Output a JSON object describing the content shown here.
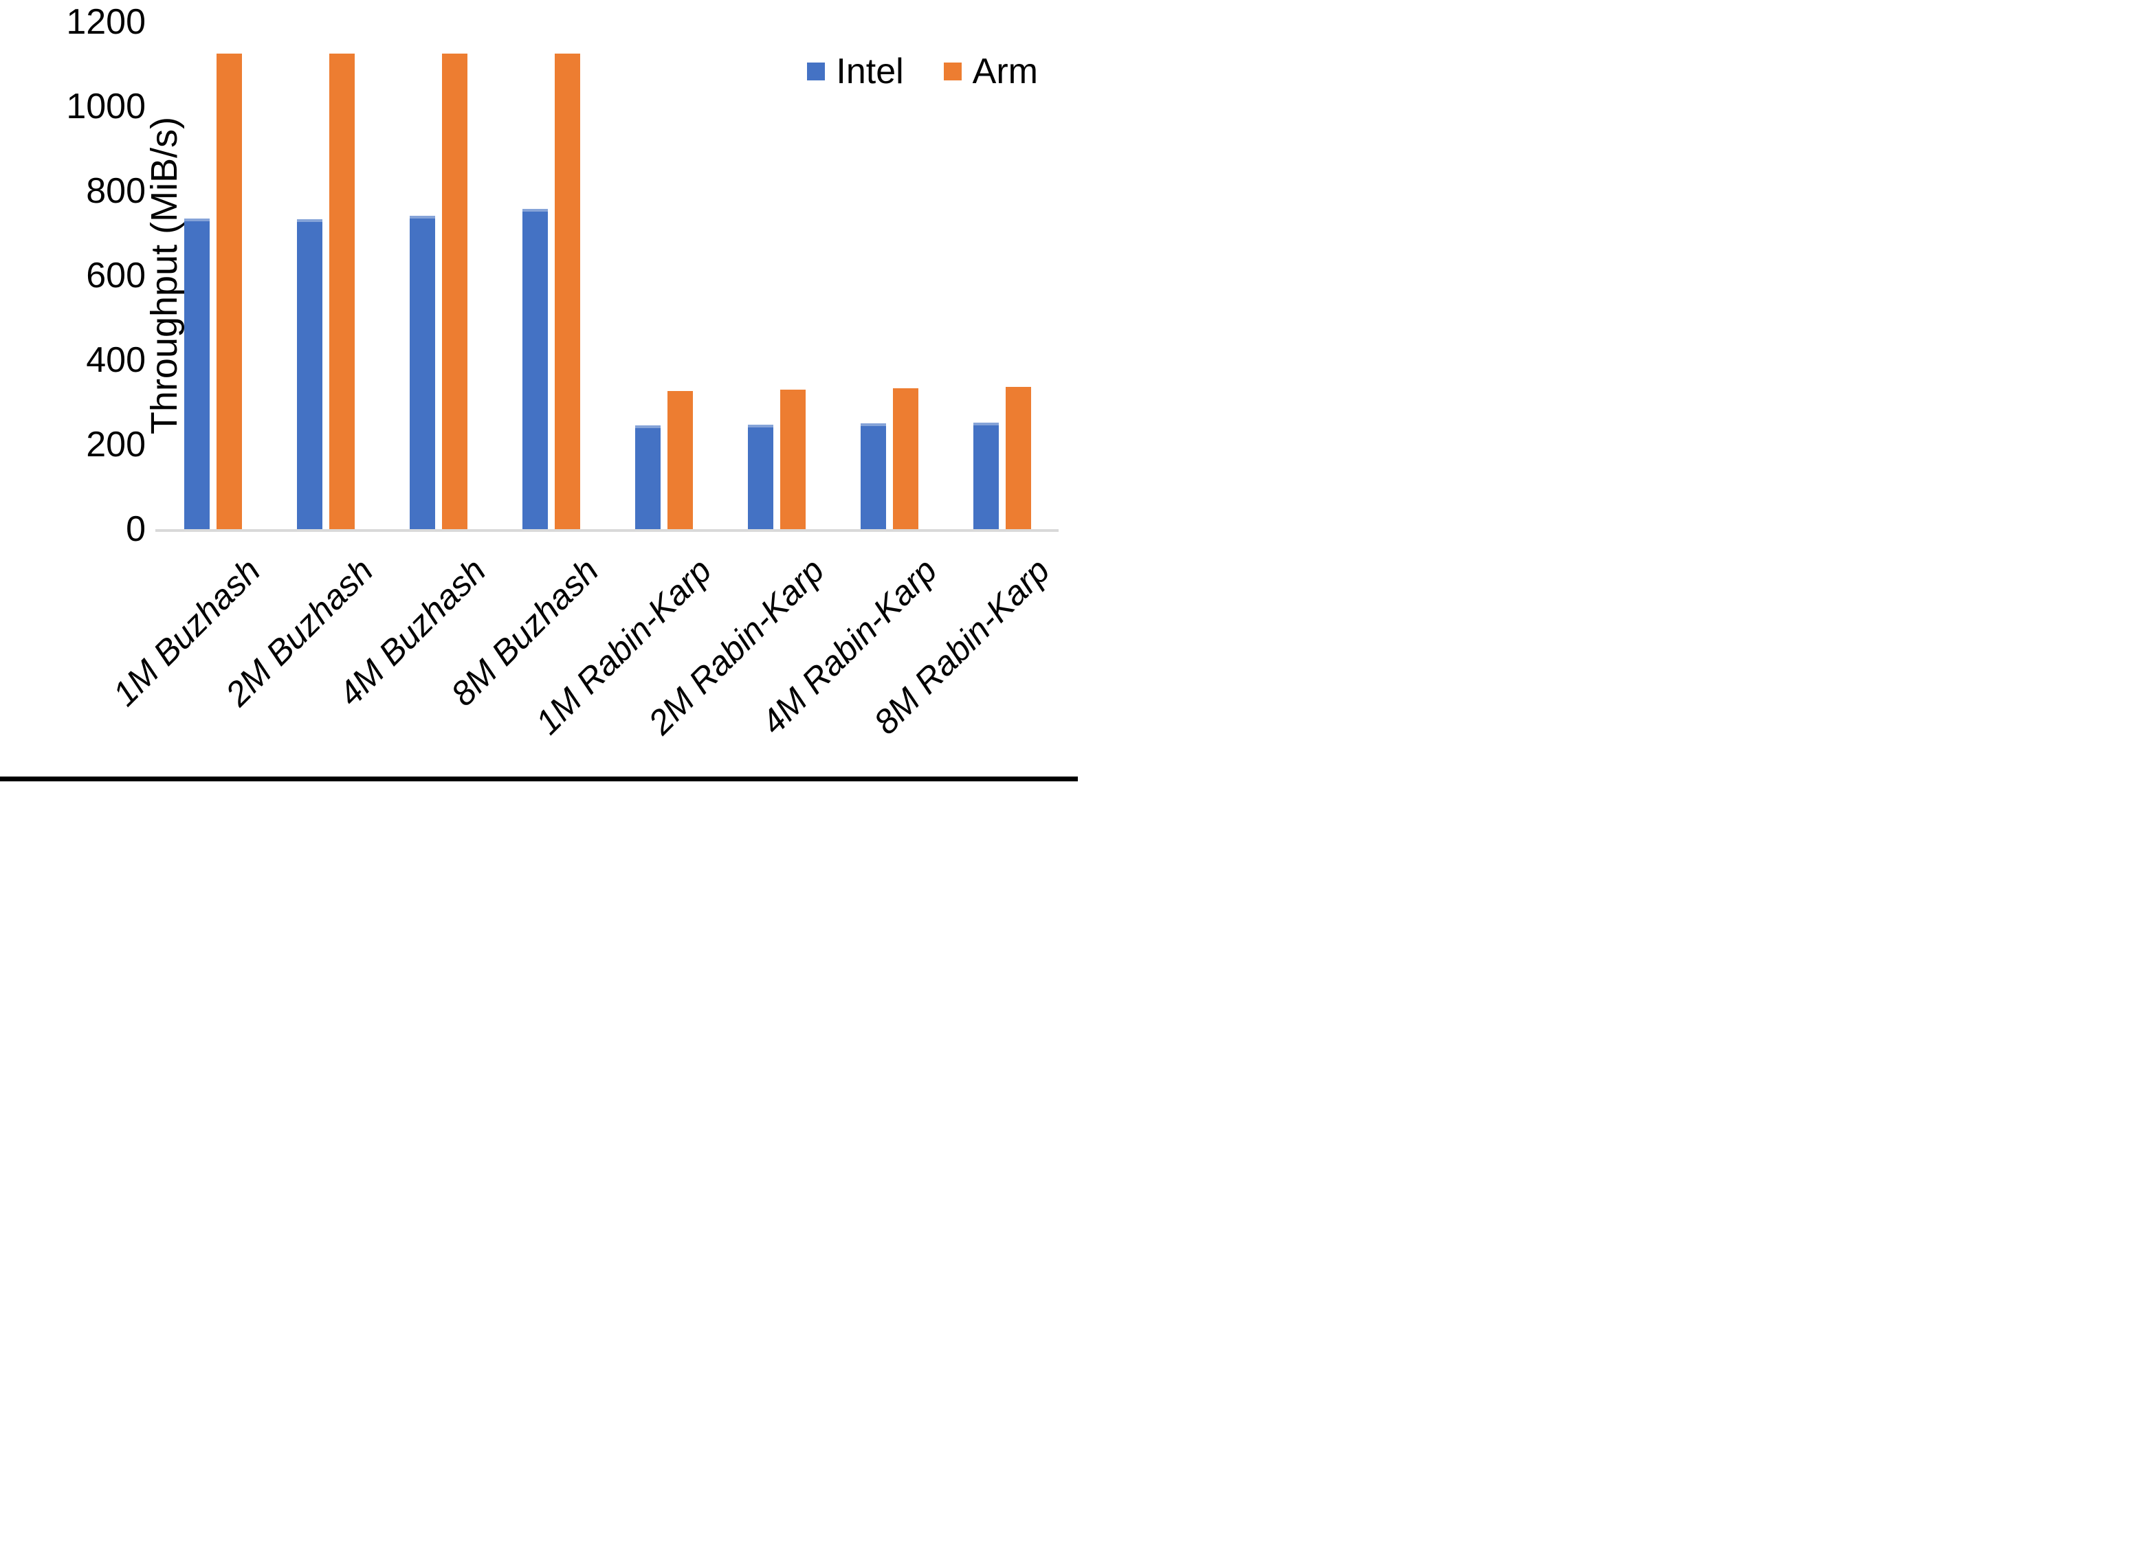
{
  "chart_data": {
    "type": "bar",
    "title": "",
    "ylabel": "Throughput (MiB/s)",
    "xlabel": "",
    "ylim": [
      0,
      1200
    ],
    "yticks": [
      0,
      200,
      400,
      600,
      800,
      1000,
      1200
    ],
    "grid": false,
    "legend_position": "top-right",
    "categories": [
      "1M Buzhash",
      "2M Buzhash",
      "4M Buzhash",
      "8M Buzhash",
      "1M Rabin-Karp",
      "2M Rabin-Karp",
      "4M Rabin-Karp",
      "8M Rabin-Karp"
    ],
    "series": [
      {
        "name": "Intel",
        "color": "#4472C4",
        "values": [
          735,
          733,
          741,
          757,
          245,
          247,
          250,
          252
        ]
      },
      {
        "name": "Arm",
        "color": "#ED7D31",
        "values": [
          1125,
          1125,
          1125,
          1125,
          327,
          330,
          333,
          336
        ]
      }
    ]
  },
  "colors": {
    "background": "#FFFFFF",
    "axis_line": "#D9D9D9",
    "text": "#000000",
    "bottom_bar": "#000000"
  }
}
